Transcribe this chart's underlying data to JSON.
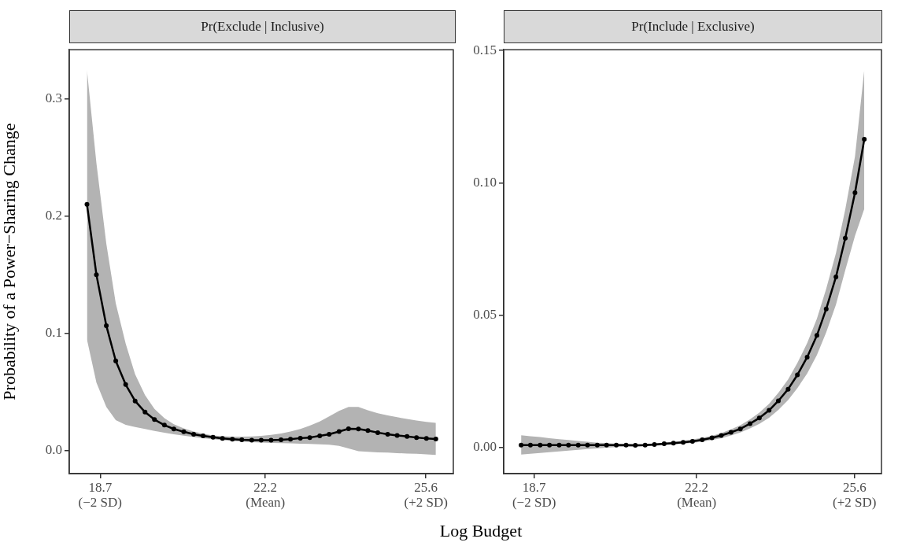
{
  "chart_data": [
    {
      "type": "line",
      "title": "Pr(Exclude | Inclusive)",
      "xlabel": "Log Budget",
      "ylabel": "Probability of a Power−Sharing Change",
      "marker": "circle",
      "line_style": "solid",
      "annotations": [
        "(−2 SD)",
        "(Mean)",
        "(+2 SD)"
      ],
      "xlim": [
        18.045,
        26.18
      ],
      "xticks": [
        18.7,
        22.2,
        25.6
      ],
      "ylim": [
        -0.0198,
        0.342
      ],
      "yticks": [
        {
          "value": 0,
          "label": "0.0"
        },
        {
          "value": 0.1,
          "label": "0.1"
        },
        {
          "value": 0.2,
          "label": "0.2"
        },
        {
          "value": 0.3,
          "label": "0.3"
        }
      ],
      "x": [
        18.42,
        18.62,
        18.83,
        19.03,
        19.24,
        19.44,
        19.65,
        19.85,
        20.06,
        20.26,
        20.47,
        20.68,
        20.88,
        21.09,
        21.29,
        21.5,
        21.7,
        21.91,
        22.11,
        22.32,
        22.53,
        22.73,
        22.94,
        23.14,
        23.35,
        23.55,
        23.76,
        23.96,
        24.17,
        24.37,
        24.58,
        24.79,
        24.99,
        25.2,
        25.4,
        25.61,
        25.81
      ],
      "series": [
        {
          "color": "#000000",
          "values": [
            0.21,
            0.15,
            0.1065,
            0.0764,
            0.0562,
            0.0422,
            0.0327,
            0.0263,
            0.0216,
            0.0183,
            0.0159,
            0.0138,
            0.0124,
            0.0112,
            0.0102,
            0.0095,
            0.009,
            0.0088,
            0.0088,
            0.0088,
            0.009,
            0.0095,
            0.0105,
            0.011,
            0.0124,
            0.0138,
            0.0161,
            0.0185,
            0.0183,
            0.0169,
            0.0152,
            0.0138,
            0.0128,
            0.0119,
            0.011,
            0.0102,
            0.0098
          ],
          "lower": [
            0.0947,
            0.0579,
            0.0371,
            0.0259,
            0.0218,
            0.02,
            0.0183,
            0.0166,
            0.0152,
            0.0138,
            0.0126,
            0.0114,
            0.0105,
            0.0095,
            0.0088,
            0.0081,
            0.0076,
            0.0071,
            0.0067,
            0.0064,
            0.0062,
            0.006,
            0.0057,
            0.0055,
            0.0052,
            0.0048,
            0.0039,
            0.0017,
            -0.0007,
            -0.0011,
            -0.0016,
            -0.0019,
            -0.0023,
            -0.0026,
            -0.0028,
            -0.0033,
            -0.0038
          ],
          "upper": [
            0.3247,
            0.2452,
            0.1765,
            0.1255,
            0.0911,
            0.065,
            0.0472,
            0.0354,
            0.0276,
            0.0223,
            0.0188,
            0.0161,
            0.0143,
            0.0128,
            0.0121,
            0.0117,
            0.0117,
            0.0119,
            0.0124,
            0.0133,
            0.0145,
            0.0161,
            0.0183,
            0.0211,
            0.0247,
            0.029,
            0.0338,
            0.0371,
            0.0371,
            0.0343,
            0.0318,
            0.0299,
            0.0283,
            0.0268,
            0.0256,
            0.0244,
            0.0235
          ]
        }
      ]
    },
    {
      "type": "line",
      "title": "Pr(Include | Exclusive)",
      "marker": "circle",
      "line_style": "solid",
      "annotations": [
        "(−2 SD)",
        "(Mean)",
        "(+2 SD)"
      ],
      "xlim": [
        18.045,
        26.18
      ],
      "xticks": [
        18.7,
        22.2,
        25.6
      ],
      "ylim": [
        -0.0098,
        0.1503
      ],
      "yticks": [
        {
          "value": 0,
          "label": "0.00"
        },
        {
          "value": 0.05,
          "label": "0.05"
        },
        {
          "value": 0.1,
          "label": "0.10"
        },
        {
          "value": 0.15,
          "label": "0.15"
        }
      ],
      "x": [
        18.42,
        18.62,
        18.83,
        19.03,
        19.24,
        19.44,
        19.65,
        19.85,
        20.06,
        20.26,
        20.47,
        20.68,
        20.88,
        21.09,
        21.29,
        21.5,
        21.7,
        21.91,
        22.11,
        22.32,
        22.53,
        22.73,
        22.94,
        23.14,
        23.35,
        23.55,
        23.76,
        23.96,
        24.17,
        24.37,
        24.58,
        24.79,
        24.99,
        25.2,
        25.4,
        25.61,
        25.81
      ],
      "series": [
        {
          "color": "#000000",
          "values": [
            0.001,
            0.001,
            0.001,
            0.001,
            0.001,
            0.001,
            0.001,
            0.001,
            0.001,
            0.001,
            0.001,
            0.001,
            0.0009,
            0.001,
            0.0012,
            0.0015,
            0.0017,
            0.002,
            0.0024,
            0.003,
            0.0037,
            0.0046,
            0.0058,
            0.0071,
            0.0091,
            0.0112,
            0.0141,
            0.0177,
            0.0221,
            0.0275,
            0.0342,
            0.0424,
            0.0524,
            0.0645,
            0.0791,
            0.0963,
            0.1165
          ],
          "lower": [
            -0.0026,
            -0.0023,
            -0.002,
            -0.0017,
            -0.0014,
            -0.0011,
            -0.0008,
            -0.0005,
            -0.0003,
            0,
            0.0002,
            0.0003,
            0.0004,
            0.0005,
            0.0007,
            0.001,
            0.0012,
            0.0015,
            0.0018,
            0.0023,
            0.0029,
            0.0036,
            0.0046,
            0.0057,
            0.0073,
            0.009,
            0.0113,
            0.0143,
            0.018,
            0.0225,
            0.028,
            0.035,
            0.0435,
            0.054,
            0.067,
            0.08,
            0.0902
          ],
          "upper": [
            0.0047,
            0.0043,
            0.004,
            0.0036,
            0.0032,
            0.0029,
            0.0025,
            0.0022,
            0.0019,
            0.0017,
            0.0015,
            0.0014,
            0.0013,
            0.0014,
            0.0016,
            0.0019,
            0.0022,
            0.0026,
            0.0031,
            0.0037,
            0.0045,
            0.0055,
            0.0069,
            0.0085,
            0.0107,
            0.0132,
            0.0166,
            0.0207,
            0.0258,
            0.032,
            0.0395,
            0.0487,
            0.06,
            0.0735,
            0.09,
            0.11,
            0.1427
          ]
        }
      ]
    }
  ]
}
